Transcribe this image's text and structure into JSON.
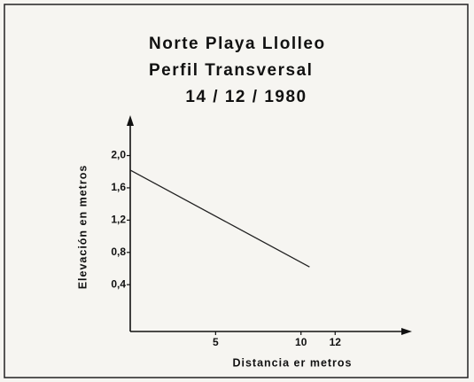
{
  "chart_data": {
    "type": "line",
    "title": [
      "Norte Playa Llolleo",
      "Perfil Transversal",
      "14 / 12 / 1980"
    ],
    "xlabel": "Distancia er metros",
    "ylabel": "Elevación en metros",
    "series": [
      {
        "x": [
          0,
          10.5
        ],
        "values": [
          1.82,
          0.62
        ],
        "color": "#222222"
      }
    ],
    "xlim": [
      0,
      16.5
    ],
    "ylim": [
      -0.18,
      2.5
    ],
    "xticks": [
      5,
      10,
      12
    ],
    "yticks": [
      {
        "value": 0.4,
        "label": "0,4"
      },
      {
        "value": 0.8,
        "label": "0,8"
      },
      {
        "value": 1.2,
        "label": "1,2"
      },
      {
        "value": 1.6,
        "label": "1,6"
      },
      {
        "value": 2.0,
        "label": "2,0"
      }
    ]
  }
}
